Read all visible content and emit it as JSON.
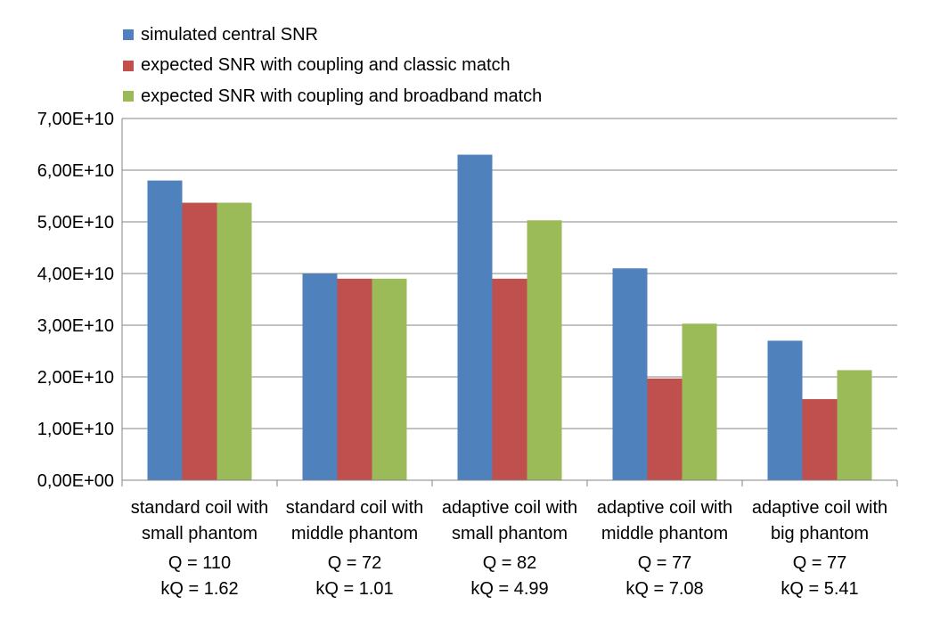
{
  "chart_data": {
    "type": "bar",
    "categories": [
      [
        "standard coil with",
        "small phantom"
      ],
      [
        "standard coil with",
        "middle phantom"
      ],
      [
        "adaptive coil with",
        "small phantom"
      ],
      [
        "adaptive coil with",
        "middle phantom"
      ],
      [
        "adaptive coil with",
        "big phantom"
      ]
    ],
    "series": [
      {
        "name": "simulated central SNR",
        "color": "#4f81bd",
        "values": [
          58000000000.0,
          40000000000.0,
          63000000000.0,
          41000000000.0,
          27000000000.0
        ]
      },
      {
        "name": "expected SNR with coupling and classic match",
        "color": "#c0504d",
        "values": [
          53700000000.0,
          39000000000.0,
          39000000000.0,
          19700000000.0,
          15700000000.0
        ]
      },
      {
        "name": "expected SNR with coupling and broadband match",
        "color": "#9bbb59",
        "values": [
          53700000000.0,
          39000000000.0,
          50300000000.0,
          30300000000.0,
          21300000000.0
        ]
      }
    ],
    "ylim": [
      0,
      70000000000.0
    ],
    "yticks": [
      0,
      10000000000.0,
      20000000000.0,
      30000000000.0,
      40000000000.0,
      50000000000.0,
      60000000000.0,
      70000000000.0
    ],
    "ytick_labels": [
      "0,00E+00",
      "1,00E+10",
      "2,00E+10",
      "3,00E+10",
      "4,00E+10",
      "5,00E+10",
      "6,00E+10",
      "7,00E+10"
    ],
    "grid": true,
    "legend_position": "top-left",
    "title": "",
    "xlabel": "",
    "ylabel": ""
  },
  "annotations": [
    {
      "q": "Q = 110",
      "kq": "kQ = 1.62"
    },
    {
      "q": "Q = 72",
      "kq": "kQ = 1.01"
    },
    {
      "q": "Q = 82",
      "kq": "kQ = 4.99"
    },
    {
      "q": "Q = 77",
      "kq": "kQ = 7.08"
    },
    {
      "q": "Q = 77",
      "kq": "kQ = 5.41"
    }
  ]
}
